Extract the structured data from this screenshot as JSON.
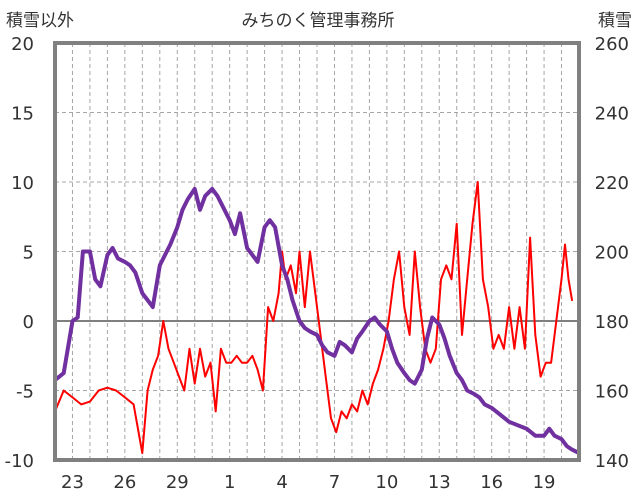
{
  "chart_data": {
    "type": "line",
    "title": "みちのく管理事務所",
    "y_left_label": "積雪以外",
    "y_right_label": "積雪",
    "y_left_range": [
      -10,
      20
    ],
    "y_right_range": [
      140,
      260
    ],
    "y_left_ticks": [
      "20",
      "15",
      "10",
      "5",
      "0",
      "-5",
      "-10"
    ],
    "y_right_ticks": [
      "260",
      "240",
      "220",
      "200",
      "180",
      "160",
      "140"
    ],
    "x_tick_labels": [
      "23",
      "26",
      "29",
      "1",
      "4",
      "7",
      "10",
      "13",
      "16",
      "19"
    ],
    "x_range": [
      21,
      51
    ],
    "x_tick_positions": [
      22,
      25,
      28,
      31,
      34,
      37,
      40,
      43,
      46,
      49
    ],
    "grid": true,
    "series": [
      {
        "axis": "left",
        "color": "#ff0000",
        "points": [
          [
            21,
            -6.5
          ],
          [
            21.5,
            -5
          ],
          [
            22,
            -5.5
          ],
          [
            22.5,
            -6
          ],
          [
            23,
            -5.8
          ],
          [
            23.5,
            -5
          ],
          [
            24,
            -4.8
          ],
          [
            24.5,
            -5
          ],
          [
            25,
            -5.5
          ],
          [
            25.5,
            -6
          ],
          [
            26,
            -9.5
          ],
          [
            26.3,
            -5
          ],
          [
            26.6,
            -3.5
          ],
          [
            26.9,
            -2.5
          ],
          [
            27.2,
            0
          ],
          [
            27.5,
            -2
          ],
          [
            27.8,
            -3
          ],
          [
            28.1,
            -4
          ],
          [
            28.4,
            -5
          ],
          [
            28.7,
            -2
          ],
          [
            29,
            -4.5
          ],
          [
            29.3,
            -2
          ],
          [
            29.6,
            -4
          ],
          [
            29.9,
            -3
          ],
          [
            30.2,
            -6.5
          ],
          [
            30.5,
            -2
          ],
          [
            30.8,
            -3
          ],
          [
            31.1,
            -3
          ],
          [
            31.4,
            -2.5
          ],
          [
            31.7,
            -3
          ],
          [
            32,
            -3
          ],
          [
            32.3,
            -2.5
          ],
          [
            32.6,
            -3.5
          ],
          [
            32.9,
            -5
          ],
          [
            33.2,
            1
          ],
          [
            33.5,
            0
          ],
          [
            33.8,
            2
          ],
          [
            34,
            5
          ],
          [
            34.2,
            3
          ],
          [
            34.5,
            4
          ],
          [
            34.8,
            2
          ],
          [
            35,
            5
          ],
          [
            35.3,
            1
          ],
          [
            35.6,
            5
          ],
          [
            35.9,
            2
          ],
          [
            36.2,
            -1
          ],
          [
            36.5,
            -4
          ],
          [
            36.8,
            -7
          ],
          [
            37.1,
            -8
          ],
          [
            37.4,
            -6.5
          ],
          [
            37.7,
            -7
          ],
          [
            38,
            -6
          ],
          [
            38.3,
            -6.5
          ],
          [
            38.6,
            -5
          ],
          [
            38.9,
            -6
          ],
          [
            39.2,
            -4.5
          ],
          [
            39.5,
            -3.5
          ],
          [
            39.8,
            -2
          ],
          [
            40.1,
            0
          ],
          [
            40.4,
            3
          ],
          [
            40.7,
            5
          ],
          [
            41,
            1
          ],
          [
            41.3,
            -1
          ],
          [
            41.6,
            5
          ],
          [
            41.9,
            1
          ],
          [
            42.2,
            -2
          ],
          [
            42.5,
            -3
          ],
          [
            42.8,
            -2
          ],
          [
            43.1,
            3
          ],
          [
            43.4,
            4
          ],
          [
            43.7,
            3
          ],
          [
            44,
            7
          ],
          [
            44.3,
            -1
          ],
          [
            44.6,
            3
          ],
          [
            44.9,
            7
          ],
          [
            45.2,
            10
          ],
          [
            45.5,
            3
          ],
          [
            45.8,
            1
          ],
          [
            46.1,
            -2
          ],
          [
            46.4,
            -1
          ],
          [
            46.7,
            -2
          ],
          [
            47,
            1
          ],
          [
            47.3,
            -2
          ],
          [
            47.6,
            1
          ],
          [
            47.9,
            -2
          ],
          [
            48.2,
            6
          ],
          [
            48.5,
            -1
          ],
          [
            48.8,
            -4
          ],
          [
            49.1,
            -3
          ],
          [
            49.4,
            -3
          ],
          [
            49.7,
            0
          ],
          [
            50,
            3
          ],
          [
            50.2,
            5.5
          ],
          [
            50.4,
            3
          ],
          [
            50.6,
            1.5
          ]
        ]
      },
      {
        "axis": "right",
        "color": "#7030a0",
        "points": [
          [
            21,
            163
          ],
          [
            21.5,
            165
          ],
          [
            22,
            180
          ],
          [
            22.3,
            181
          ],
          [
            22.6,
            200
          ],
          [
            23,
            200
          ],
          [
            23.3,
            192
          ],
          [
            23.6,
            190
          ],
          [
            24,
            199
          ],
          [
            24.3,
            201
          ],
          [
            24.6,
            198
          ],
          [
            25,
            197
          ],
          [
            25.3,
            196
          ],
          [
            25.6,
            194
          ],
          [
            26,
            188
          ],
          [
            26.3,
            186
          ],
          [
            26.6,
            184
          ],
          [
            27,
            196
          ],
          [
            27.3,
            199
          ],
          [
            27.6,
            202
          ],
          [
            28,
            207
          ],
          [
            28.3,
            212
          ],
          [
            28.6,
            215
          ],
          [
            29,
            218
          ],
          [
            29.3,
            212
          ],
          [
            29.6,
            216
          ],
          [
            30,
            218
          ],
          [
            30.3,
            216
          ],
          [
            30.6,
            213
          ],
          [
            31,
            209
          ],
          [
            31.3,
            205
          ],
          [
            31.6,
            211
          ],
          [
            32,
            201
          ],
          [
            32.3,
            199
          ],
          [
            32.6,
            197
          ],
          [
            33,
            207
          ],
          [
            33.3,
            209
          ],
          [
            33.6,
            207
          ],
          [
            34,
            196
          ],
          [
            34.3,
            192
          ],
          [
            34.6,
            186
          ],
          [
            35,
            180
          ],
          [
            35.3,
            178
          ],
          [
            35.6,
            177
          ],
          [
            36,
            176
          ],
          [
            36.3,
            173
          ],
          [
            36.6,
            171
          ],
          [
            37,
            170
          ],
          [
            37.3,
            174
          ],
          [
            37.6,
            173
          ],
          [
            38,
            171
          ],
          [
            38.3,
            175
          ],
          [
            38.6,
            177
          ],
          [
            39,
            180
          ],
          [
            39.3,
            181
          ],
          [
            39.6,
            179
          ],
          [
            40,
            177
          ],
          [
            40.3,
            172
          ],
          [
            40.6,
            168
          ],
          [
            41,
            165
          ],
          [
            41.3,
            163
          ],
          [
            41.6,
            162
          ],
          [
            42,
            166
          ],
          [
            42.3,
            175
          ],
          [
            42.6,
            181
          ],
          [
            43,
            179
          ],
          [
            43.3,
            175
          ],
          [
            43.6,
            170
          ],
          [
            44,
            165
          ],
          [
            44.3,
            163
          ],
          [
            44.6,
            160
          ],
          [
            45,
            159
          ],
          [
            45.3,
            158
          ],
          [
            45.6,
            156
          ],
          [
            46,
            155
          ],
          [
            46.5,
            153
          ],
          [
            47,
            151
          ],
          [
            47.5,
            150
          ],
          [
            48,
            149
          ],
          [
            48.5,
            147
          ],
          [
            49,
            147
          ],
          [
            49.3,
            149
          ],
          [
            49.6,
            147
          ],
          [
            50,
            146
          ],
          [
            50.3,
            144
          ],
          [
            50.6,
            143
          ],
          [
            51,
            142
          ]
        ]
      }
    ]
  }
}
